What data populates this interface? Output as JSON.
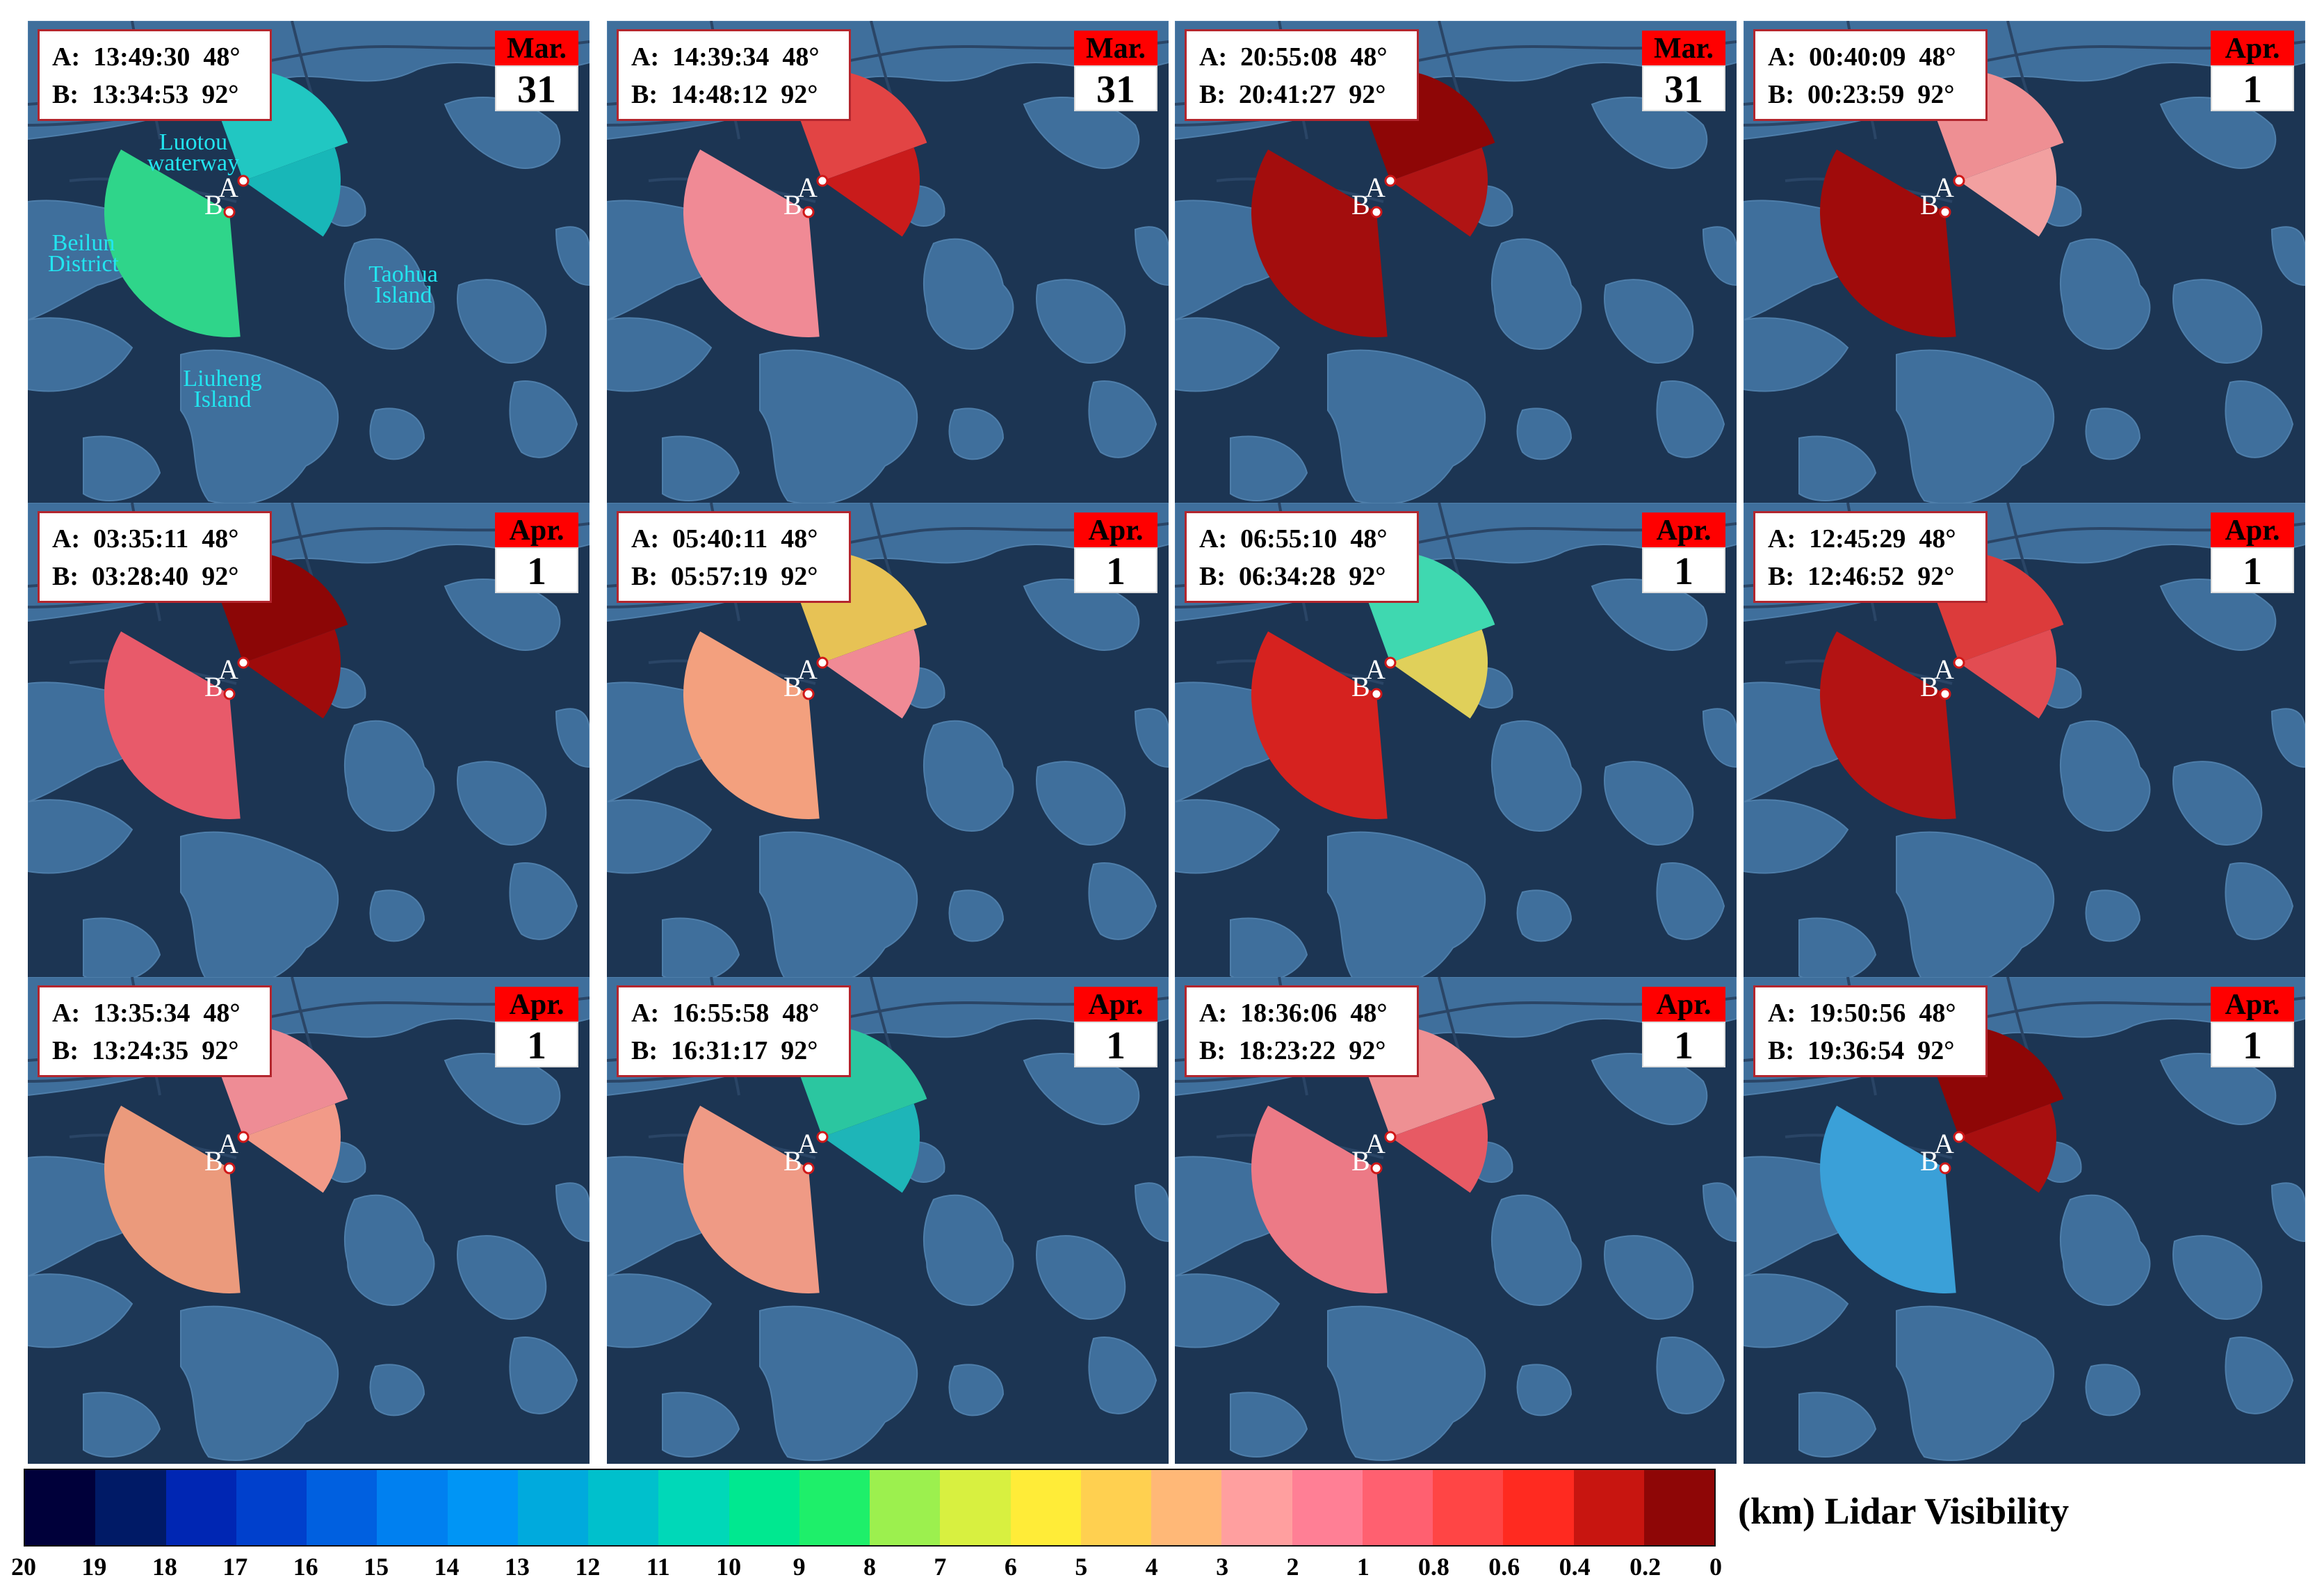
{
  "panels": [
    {
      "a_label": "A:",
      "a_time": "13:49:30",
      "a_angle": "48°",
      "b_label": "B:",
      "b_time": "13:34:53",
      "b_angle": "92°",
      "month": "Mar.",
      "day": "31",
      "color_south": "#2fd58a",
      "color_north": "#21c7c2",
      "color_north2": "#18b7b8"
    },
    {
      "a_label": "A:",
      "a_time": "14:39:34",
      "a_angle": "48°",
      "b_label": "B:",
      "b_time": "14:48:12",
      "b_angle": "92°",
      "month": "Mar.",
      "day": "31",
      "color_south": "#f08a95",
      "color_north": "#e24444",
      "color_north2": "#c91b1b"
    },
    {
      "a_label": "A:",
      "a_time": "20:55:08",
      "a_angle": "48°",
      "b_label": "B:",
      "b_time": "20:41:27",
      "b_angle": "92°",
      "month": "Mar.",
      "day": "31",
      "color_south": "#a30d0d",
      "color_north": "#8e0606",
      "color_north2": "#b01414"
    },
    {
      "a_label": "A:",
      "a_time": "00:40:09",
      "a_angle": "48°",
      "b_label": "B:",
      "b_time": "00:23:59",
      "b_angle": "92°",
      "month": "Apr.",
      "day": "1",
      "color_south": "#a00b0b",
      "color_north": "#ee8f93",
      "color_north2": "#f2a0a0"
    },
    {
      "a_label": "A:",
      "a_time": "03:35:11",
      "a_angle": "48°",
      "b_label": "B:",
      "b_time": "03:28:40",
      "b_angle": "92°",
      "month": "Apr.",
      "day": "1",
      "color_south": "#e85a6a",
      "color_north": "#8c0606",
      "color_north2": "#9e0b0b"
    },
    {
      "a_label": "A:",
      "a_time": "05:40:11",
      "a_angle": "48°",
      "b_label": "B:",
      "b_time": "05:57:19",
      "b_angle": "92°",
      "month": "Apr.",
      "day": "1",
      "color_south": "#f3a07e",
      "color_north": "#e7c255",
      "color_north2": "#f08a95"
    },
    {
      "a_label": "A:",
      "a_time": "06:55:10",
      "a_angle": "48°",
      "b_label": "B:",
      "b_time": "06:34:28",
      "b_angle": "92°",
      "month": "Apr.",
      "day": "1",
      "color_south": "#d6221f",
      "color_north": "#3fd8b0",
      "color_north2": "#e0d05a"
    },
    {
      "a_label": "A:",
      "a_time": "12:45:29",
      "a_angle": "48°",
      "b_label": "B:",
      "b_time": "12:46:52",
      "b_angle": "92°",
      "month": "Apr.",
      "day": "1",
      "color_south": "#b31313",
      "color_north": "#dc3b3b",
      "color_north2": "#e24c52"
    },
    {
      "a_label": "A:",
      "a_time": "13:35:34",
      "a_angle": "48°",
      "b_label": "B:",
      "b_time": "13:24:35",
      "b_angle": "92°",
      "month": "Apr.",
      "day": "1",
      "color_south": "#eb9a7c",
      "color_north": "#ee8c95",
      "color_north2": "#f29a88"
    },
    {
      "a_label": "A:",
      "a_time": "16:55:58",
      "a_angle": "48°",
      "b_label": "B:",
      "b_time": "16:31:17",
      "b_angle": "92°",
      "month": "Apr.",
      "day": "1",
      "color_south": "#ef9a85",
      "color_north": "#2bc6a0",
      "color_north2": "#1eb5b8"
    },
    {
      "a_label": "A:",
      "a_time": "18:36:06",
      "a_angle": "48°",
      "b_label": "B:",
      "b_time": "18:23:22",
      "b_angle": "92°",
      "month": "Apr.",
      "day": "1",
      "color_south": "#ec7a86",
      "color_north": "#ee9093",
      "color_north2": "#e75a64"
    },
    {
      "a_label": "A:",
      "a_time": "19:50:56",
      "a_angle": "48°",
      "b_label": "B:",
      "b_time": "19:36:54",
      "b_angle": "92°",
      "month": "Apr.",
      "day": "1",
      "color_south": "#3aa0d8",
      "color_north": "#8e0606",
      "color_north2": "#a80f0f"
    }
  ],
  "stations": {
    "a": "A",
    "b": "B"
  },
  "places": {
    "luotou": "Luotou waterway",
    "beilun": "Beilun District",
    "taohua": "Taohua Island",
    "liuheng": "Liuheng Island"
  },
  "colorbar": {
    "unit": "(km)",
    "title": "Lidar Visibility",
    "colors": [
      "#00003a",
      "#001a66",
      "#0026b3",
      "#0040cc",
      "#0060e0",
      "#0080f0",
      "#0095f5",
      "#00aadd",
      "#00c0cc",
      "#00d8b8",
      "#00e890",
      "#1eef6a",
      "#9cf04e",
      "#d8f040",
      "#ffec38",
      "#ffd050",
      "#ffb877",
      "#ff9f9f",
      "#ff7f95",
      "#ff6070",
      "#ff4545",
      "#ff2a20",
      "#c81510",
      "#8e0606"
    ],
    "ticks": [
      "20",
      "19",
      "18",
      "17",
      "16",
      "15",
      "14",
      "13",
      "12",
      "11",
      "10",
      "9",
      "8",
      "7",
      "6",
      "5",
      "4",
      "3",
      "2",
      "1",
      "0.8",
      "0.6",
      "0.4",
      "0.2",
      "0"
    ]
  }
}
